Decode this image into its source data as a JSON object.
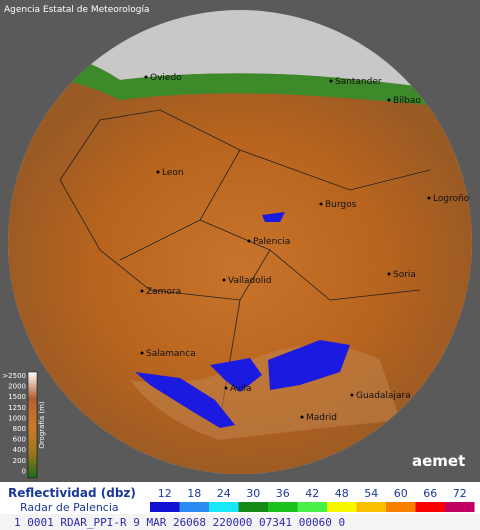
{
  "header": {
    "agency": "Agencia Estatal de Meteorología"
  },
  "cities": [
    "Oviedo",
    "Santander",
    "Bilbao",
    "Leon",
    "Burgos",
    "Logroño",
    "Palencia",
    "Soria",
    "Valladolid",
    "Zamora",
    "Salamanca",
    "Avila",
    "Guadalajara",
    "Madrid"
  ],
  "elevation_legend": {
    "title": "Orografía (m)",
    "labels": [
      ">2500",
      "2000",
      "1500",
      "1250",
      "1000",
      "800",
      "600",
      "400",
      "200",
      "0"
    ]
  },
  "logo": "aemet",
  "legend": {
    "title": "Reflectividad (dbz)",
    "subtitle": "Radar de Palencia",
    "levels": [
      "12",
      "18",
      "24",
      "30",
      "36",
      "42",
      "48",
      "54",
      "60",
      "66",
      "72"
    ],
    "colors": [
      "#1010d0",
      "#2a8cf0",
      "#18e8f8",
      "#168a16",
      "#1cc01c",
      "#48f048",
      "#f8f800",
      "#f8c000",
      "#f88000",
      "#f80000",
      "#c00060"
    ]
  },
  "status": "1 0001 RDAR_PPI-R  9 MAR 26068 220000 07341 00060 0"
}
